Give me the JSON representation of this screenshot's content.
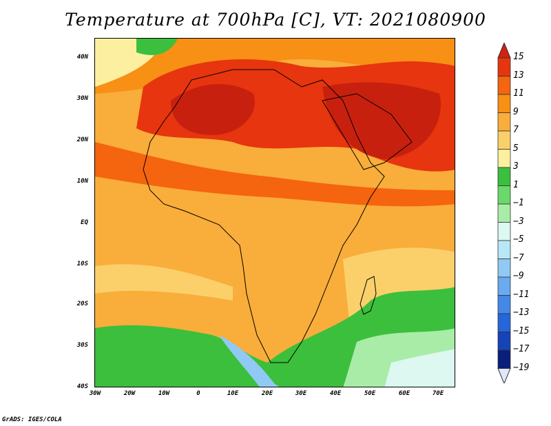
{
  "title": "Temperature at 700hPa [C], VT: 2021080900",
  "footer": "GrADS: IGES/COLA",
  "map": {
    "region": "Africa",
    "variable": "Temperature",
    "level": "700hPa",
    "units": "C",
    "valid_time": "2021080900",
    "lon_range": [
      -30,
      75
    ],
    "lat_range": [
      -40,
      45
    ],
    "y_ticks": [
      "40N",
      "30N",
      "20N",
      "10N",
      "EQ",
      "10S",
      "20S",
      "30S",
      "40S"
    ],
    "x_ticks": [
      "30W",
      "20W",
      "10W",
      "0",
      "10E",
      "20E",
      "30E",
      "40E",
      "50E",
      "60E",
      "70E"
    ]
  },
  "colorbar": {
    "levels": [
      "15",
      "13",
      "11",
      "9",
      "7",
      "5",
      "3",
      "1",
      "−1",
      "−3",
      "−5",
      "−7",
      "−9",
      "−11",
      "−13",
      "−15",
      "−17",
      "−19"
    ],
    "colors": [
      "#c8200e",
      "#e6350f",
      "#f5640f",
      "#f79014",
      "#f9ad3a",
      "#fbd06b",
      "#fcf0a0",
      "#3cbf3c",
      "#6ad86a",
      "#a8eca8",
      "#dcf8f0",
      "#b8e8f8",
      "#90caf4",
      "#6aaaf0",
      "#4488e8",
      "#2666dc",
      "#1444b8",
      "#0a1e7a"
    ],
    "top_arrow_color": "#d42010",
    "bottom_arrow_color": "#e0e6ff"
  }
}
